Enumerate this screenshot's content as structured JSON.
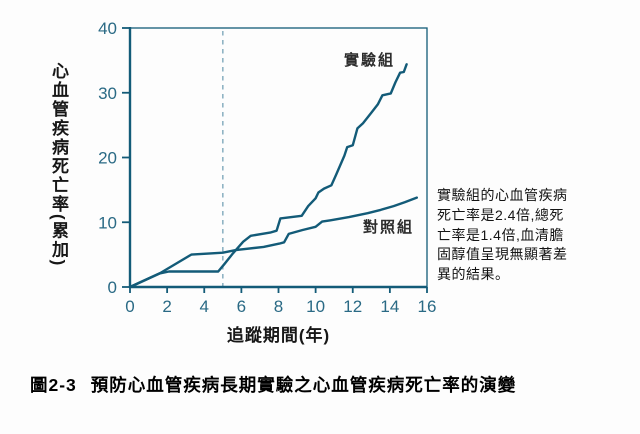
{
  "figure": {
    "y_axis_label_vertical": "心血管疾病死亡率(累加)",
    "x_axis_title": "追蹤期間(年)",
    "caption": {
      "label": "圖2-3",
      "title": "預防心血管疾病長期實驗之心血管疾病死亡率的演變"
    },
    "annotation": {
      "full_text": "實驗組的心血管疾病死亡率是2.4倍,總死亡率是1.4倍,血清膽固醇值呈現無顯著差異的結果。",
      "lines": [
        "實驗組的心血管疾病",
        "死亡率是2.4倍,總死",
        "亡率是1.4倍,血清膽",
        "固醇值呈現無顯著差",
        "異的結果。"
      ]
    }
  },
  "colors": {
    "line": "#135b78",
    "axis": "#135b78",
    "tick_text": "#2a6a85",
    "dashed_reference": "#8fb3c4",
    "text": "#141414"
  },
  "chart_data": {
    "type": "line",
    "title": "",
    "xlabel": "追蹤期間(年)",
    "ylabel": "心血管疾病死亡率(累加)",
    "xlim": [
      0,
      16
    ],
    "ylim": [
      0,
      40
    ],
    "x_ticks": [
      0,
      2,
      4,
      6,
      8,
      10,
      12,
      14,
      16
    ],
    "y_ticks": [
      0,
      10,
      20,
      30,
      40
    ],
    "grid": false,
    "reference_line_x": 5,
    "legend_position": "inline-labels",
    "series": [
      {
        "name": "實驗組",
        "points": [
          [
            0,
            0
          ],
          [
            1.6,
            2.1
          ],
          [
            2.1,
            2.4
          ],
          [
            4.75,
            2.4
          ],
          [
            5.1,
            3.6
          ],
          [
            5.55,
            5.2
          ],
          [
            6.1,
            7.0
          ],
          [
            6.5,
            7.9
          ],
          [
            7.55,
            8.4
          ],
          [
            7.9,
            8.7
          ],
          [
            8.1,
            10.6
          ],
          [
            9.25,
            11.0
          ],
          [
            9.6,
            12.5
          ],
          [
            10.0,
            13.7
          ],
          [
            10.15,
            14.6
          ],
          [
            10.45,
            15.2
          ],
          [
            10.85,
            15.7
          ],
          [
            11.1,
            17.3
          ],
          [
            11.55,
            20.3
          ],
          [
            11.7,
            21.6
          ],
          [
            12.0,
            21.9
          ],
          [
            12.25,
            24.5
          ],
          [
            12.55,
            25.3
          ],
          [
            13.0,
            26.9
          ],
          [
            13.35,
            28.2
          ],
          [
            13.6,
            29.6
          ],
          [
            14.05,
            29.9
          ],
          [
            14.3,
            31.6
          ],
          [
            14.55,
            33.1
          ],
          [
            14.75,
            33.2
          ],
          [
            14.9,
            34.4
          ]
        ]
      },
      {
        "name": "對照組",
        "points": [
          [
            0,
            0
          ],
          [
            1.6,
            2.1
          ],
          [
            3.3,
            5.0
          ],
          [
            5.0,
            5.3
          ],
          [
            5.7,
            5.7
          ],
          [
            7.2,
            6.2
          ],
          [
            8.05,
            6.7
          ],
          [
            8.3,
            6.9
          ],
          [
            8.55,
            8.2
          ],
          [
            9.3,
            8.8
          ],
          [
            10.0,
            9.3
          ],
          [
            10.35,
            10.1
          ],
          [
            10.8,
            10.3
          ],
          [
            11.8,
            10.8
          ],
          [
            12.8,
            11.4
          ],
          [
            13.5,
            11.9
          ],
          [
            14.2,
            12.5
          ],
          [
            14.8,
            13.1
          ],
          [
            15.45,
            13.8
          ]
        ]
      }
    ]
  }
}
